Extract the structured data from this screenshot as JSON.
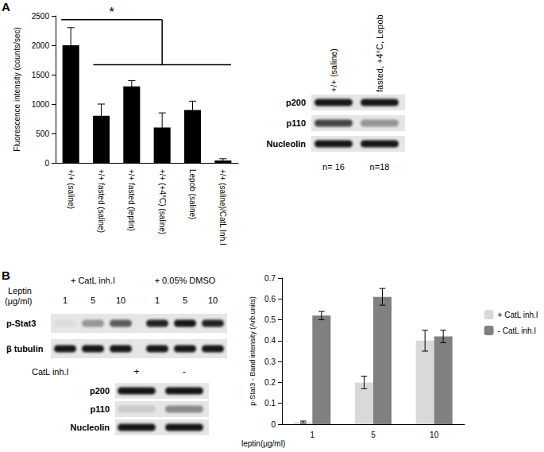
{
  "panel_labels": [
    "A",
    "B"
  ],
  "chart_data": [
    {
      "type": "bar",
      "y_label": "Fluorescence intensity (counts/sec)",
      "categories": [
        "+/+ (saline)",
        "+/+ fasted (saline)",
        "+/+ fasted (leptin)",
        "+/+ (+4°C) (saline)",
        "Lepob (saline)",
        "+/+ (saline)/CatL Inh.I"
      ],
      "values": [
        2000,
        800,
        1300,
        600,
        900,
        40
      ],
      "errors": [
        300,
        200,
        100,
        250,
        150,
        30
      ],
      "color": "#000000",
      "ylim": [
        0,
        2500
      ],
      "yticks": [
        0,
        500,
        1000,
        1500,
        2000,
        2500
      ],
      "grid": false,
      "annotations": [
        "*"
      ]
    },
    {
      "type": "bar",
      "y_label": "p-Stat3 - Band intensity (Arb.units)",
      "x_label": "leptin(μg/ml)",
      "categories": [
        "1",
        "5",
        "10"
      ],
      "series": [
        {
          "name": "+ CatL inh.I",
          "color": "#d9d9d9",
          "values": [
            0.01,
            0.2,
            0.4
          ],
          "errors": [
            0.005,
            0.03,
            0.05
          ]
        },
        {
          "name": "- CatL inh.I",
          "color": "#808080",
          "values": [
            0.52,
            0.61,
            0.42
          ],
          "errors": [
            0.02,
            0.04,
            0.03
          ]
        }
      ],
      "ylim": [
        0,
        0.7
      ],
      "yticks": [
        0,
        0.1,
        0.2,
        0.3,
        0.4,
        0.5,
        0.6,
        0.7
      ],
      "grid": false,
      "legend": "right"
    }
  ],
  "blots": {
    "A": {
      "columns": [
        "+/+ (saline)",
        "fasted, +4°C, Lepob"
      ],
      "rows": [
        "p200",
        "p110",
        "Nucleolin"
      ],
      "footer": [
        "n= 16",
        "n=18"
      ]
    },
    "B_top": {
      "header_label": "Leptin",
      "header_unit": "(μg/ml)",
      "groups": [
        "+ CatL inh.I",
        "+ 0.05% DMSO"
      ],
      "lanes": [
        "1",
        "5",
        "10",
        "1",
        "5",
        "10"
      ],
      "rows": [
        "p-Stat3",
        "β tubulin"
      ]
    },
    "B_bottom": {
      "header_label": "CatL inh.I",
      "columns": [
        "+",
        "-"
      ],
      "rows": [
        "p200",
        "p110",
        "Nucleolin"
      ]
    }
  }
}
